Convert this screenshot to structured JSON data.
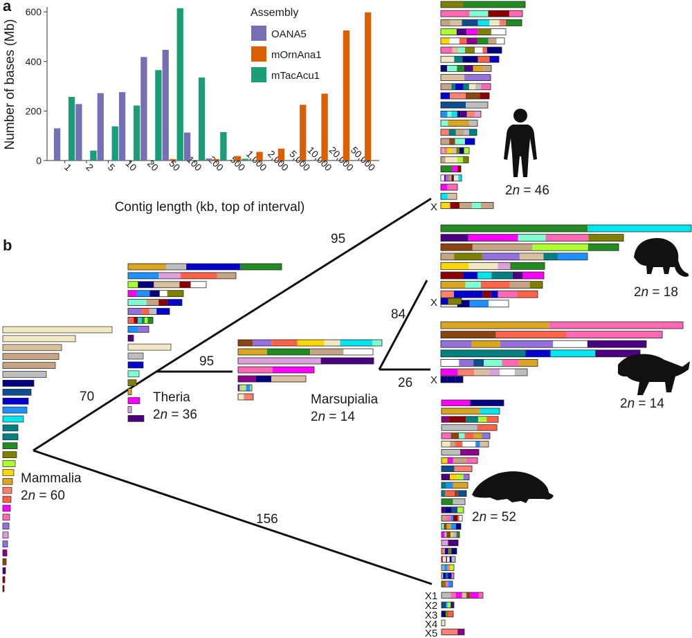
{
  "panel_a_label": "a",
  "panel_b_label": "b",
  "chart_data": {
    "type": "bar",
    "title": "",
    "xlabel": "Contig length (kb, top of interval)",
    "ylabel": "Number of bases (Mb)",
    "ylim": [
      0,
      620
    ],
    "y_ticks": [
      0,
      200,
      400,
      600
    ],
    "categories": [
      "1",
      "2",
      "5",
      "10",
      "20",
      "50",
      "100",
      "200",
      "500",
      "1,000",
      "2,000",
      "5,000",
      "10,000",
      "20,000",
      "50,000"
    ],
    "legend_title": "Assembly",
    "legend_position": "top-center",
    "grid": false,
    "series": [
      {
        "name": "OANA5",
        "color": "#7570b3",
        "values": [
          130,
          228,
          272,
          276,
          418,
          447,
          113,
          8,
          0,
          0,
          0,
          0,
          0,
          0,
          0
        ]
      },
      {
        "name": "mOrnAna1",
        "color": "#d95f02",
        "values": [
          0,
          0,
          0,
          0,
          0,
          6,
          0,
          6,
          18,
          35,
          48,
          225,
          270,
          525,
          598
        ]
      },
      {
        "name": "mTacAcu1",
        "color": "#1b9e77",
        "values": [
          257,
          40,
          138,
          222,
          365,
          615,
          335,
          115,
          7,
          0,
          0,
          0,
          0,
          0,
          0
        ]
      }
    ]
  },
  "tree": {
    "branch_lengths": {
      "human": "95",
      "marsupialia": "95",
      "opossum": "84",
      "devil": "26",
      "theria": "70",
      "platypus": "156"
    },
    "nodes": {
      "mammalia": {
        "name": "Mammalia",
        "prefix": "2",
        "italic": "n",
        "value": " = 60"
      },
      "theria": {
        "name": "Theria",
        "prefix": "2",
        "italic": "n",
        "value": " = 36"
      },
      "marsupialia": {
        "name": "Marsupialia",
        "prefix": "2",
        "italic": "n",
        "value": " = 14"
      }
    },
    "species": {
      "human": {
        "prefix": "2",
        "italic": "n",
        "value": " = 46",
        "x_label": "X"
      },
      "opossum": {
        "prefix": "2",
        "italic": "n",
        "value": " = 18",
        "x_label": "X"
      },
      "devil": {
        "prefix": "2",
        "italic": "n",
        "value": " = 14",
        "x_label": "X"
      },
      "platypus": {
        "prefix": "2",
        "italic": "n",
        "value": " = 52",
        "x_labels": [
          "X1",
          "X2",
          "X3",
          "X4",
          "X5"
        ]
      }
    }
  },
  "palette": [
    "#f2e8c4",
    "#d8c0a0",
    "#c4a484",
    "#bebebe",
    "#000080",
    "#104e8b",
    "#0000cd",
    "#1e90ff",
    "#00e5ee",
    "#7fffd4",
    "#008080",
    "#228b22",
    "#808000",
    "#adff2f",
    "#ffd700",
    "#daa520",
    "#fa8072",
    "#ff6347",
    "#ff00ff",
    "#ff69b4",
    "#9370db",
    "#dda0dd",
    "#8b008b",
    "#8b4513",
    "#4b0082",
    "#8b0000",
    "#ffffff"
  ],
  "silhouette_color": "#111111"
}
